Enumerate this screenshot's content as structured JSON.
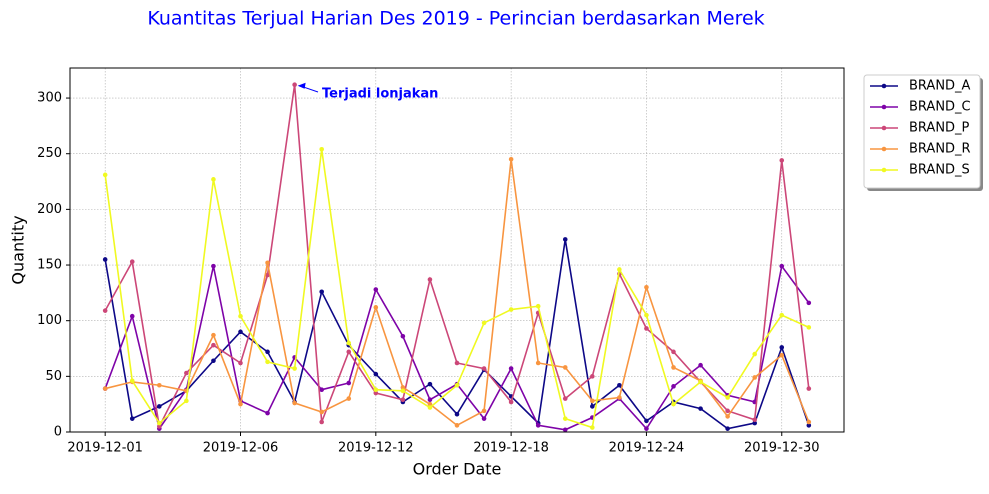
{
  "chart_data": {
    "type": "line",
    "title": "Kuantitas Terjual Harian Des 2019 - Perincian berdasarkan Merek",
    "x_label": "Order Date",
    "y_label": "Quantity",
    "annotation": "Terjadi lonjakan",
    "categories": [
      "2019-12-01",
      null,
      null,
      null,
      null,
      "2019-12-06",
      null,
      null,
      null,
      null,
      "2019-12-12",
      null,
      null,
      null,
      null,
      "2019-12-18",
      null,
      null,
      null,
      null,
      "2019-12-24",
      null,
      null,
      null,
      null,
      "2019-12-30",
      null
    ],
    "series": [
      {
        "name": "BRAND_A",
        "color": "#0d0887",
        "values": [
          155,
          12,
          23,
          37,
          64,
          90,
          72,
          27,
          126,
          78,
          52,
          27,
          43,
          16,
          56,
          32,
          8,
          173,
          23,
          42,
          10,
          27,
          21,
          3,
          8,
          76,
          6
        ]
      },
      {
        "name": "BRAND_C",
        "color": "#7e03a8",
        "values": [
          39,
          104,
          3,
          38,
          149,
          28,
          17,
          67,
          38,
          44,
          128,
          86,
          29,
          43,
          12,
          57,
          6,
          2,
          13,
          30,
          3,
          41,
          60,
          33,
          27,
          149,
          116
        ]
      },
      {
        "name": "BRAND_P",
        "color": "#cc4778",
        "values": [
          109,
          153,
          5,
          53,
          78,
          62,
          141,
          312,
          9,
          72,
          35,
          29,
          137,
          62,
          57,
          27,
          107,
          30,
          50,
          142,
          93,
          72,
          45,
          19,
          11,
          244,
          39
        ]
      },
      {
        "name": "BRAND_R",
        "color": "#f89540",
        "values": [
          39,
          45,
          42,
          37,
          87,
          25,
          152,
          26,
          18,
          30,
          112,
          40,
          25,
          6,
          19,
          245,
          62,
          58,
          28,
          31,
          130,
          58,
          46,
          14,
          49,
          69,
          9
        ]
      },
      {
        "name": "BRAND_S",
        "color": "#f0f921",
        "values": [
          231,
          46,
          8,
          28,
          227,
          104,
          63,
          57,
          254,
          80,
          38,
          37,
          22,
          42,
          98,
          110,
          113,
          12,
          4,
          146,
          105,
          25,
          45,
          31,
          70,
          105,
          94
        ]
      }
    ],
    "ylim": [
      0,
      327
    ],
    "yticks": [
      0,
      50,
      100,
      150,
      200,
      250,
      300
    ],
    "grid": true,
    "legend": "outside upper right"
  }
}
